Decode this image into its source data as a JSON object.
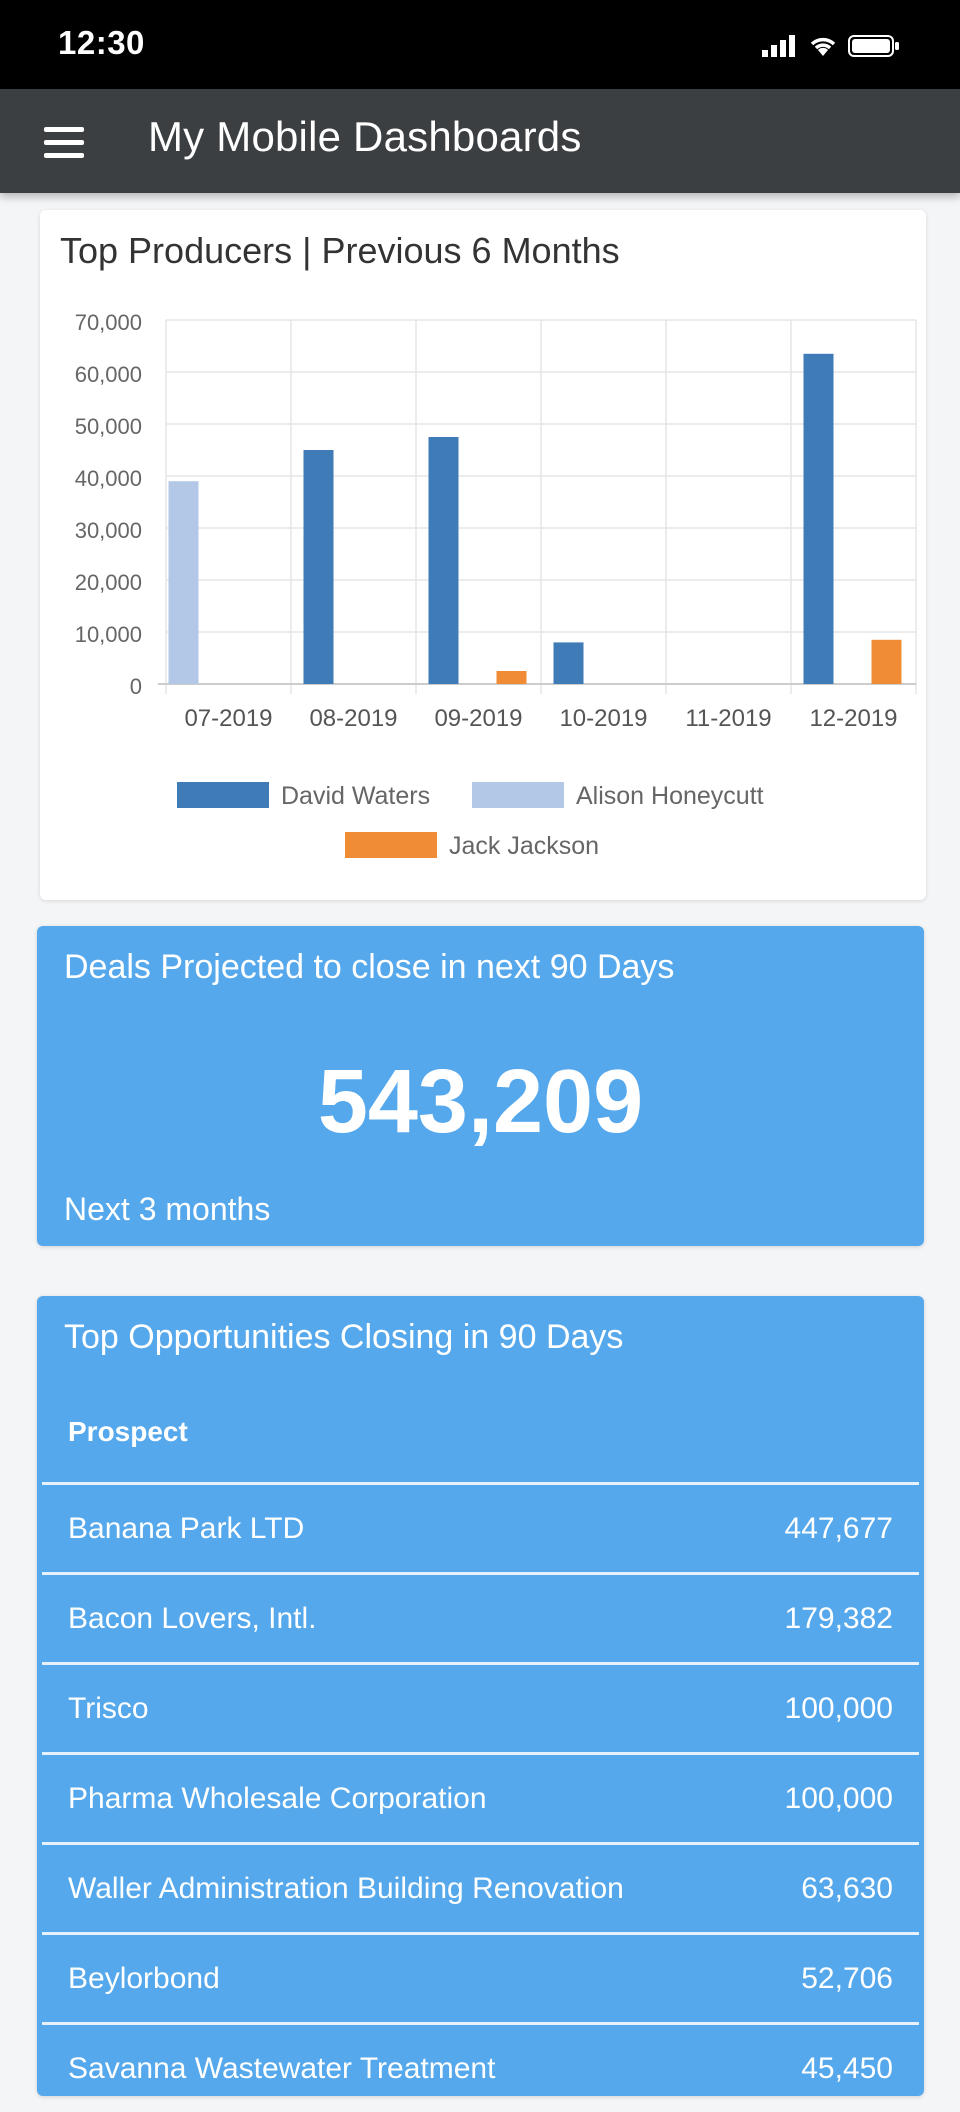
{
  "status_bar": {
    "time": "12:30"
  },
  "app_bar": {
    "title": "My Mobile Dashboards"
  },
  "chart_card": {
    "title": "Top Producers | Previous 6 Months"
  },
  "chart_data": {
    "type": "bar",
    "title": "Top Producers | Previous 6 Months",
    "categories": [
      "07-2019",
      "08-2019",
      "09-2019",
      "10-2019",
      "11-2019",
      "12-2019"
    ],
    "series": [
      {
        "name": "David Waters",
        "color": "#3f7bb6",
        "values": [
          0,
          45000,
          47500,
          8000,
          0,
          63500
        ]
      },
      {
        "name": "Alison Honeycutt",
        "color": "#b3c8e6",
        "values": [
          39000,
          0,
          0,
          0,
          0,
          0
        ]
      },
      {
        "name": "Jack Jackson",
        "color": "#ef8c35",
        "values": [
          0,
          0,
          2500,
          0,
          0,
          8500
        ]
      }
    ],
    "ylim": [
      0,
      70000
    ],
    "yticks": [
      0,
      10000,
      20000,
      30000,
      40000,
      50000,
      60000,
      70000
    ],
    "ytick_labels": [
      "0",
      "10,000",
      "20,000",
      "30,000",
      "40,000",
      "50,000",
      "60,000",
      "70,000"
    ],
    "grid": true,
    "legend": "bottom"
  },
  "kpi_card": {
    "title": "Deals Projected to close in next 90 Days",
    "value": "543,209",
    "footer": "Next 3 months"
  },
  "opportunities": {
    "title": "Top Opportunities Closing in 90 Days",
    "column_header": "Prospect",
    "rows": [
      {
        "name": "Banana Park LTD",
        "value": "447,677"
      },
      {
        "name": "Bacon Lovers, Intl.",
        "value": "179,382"
      },
      {
        "name": "Trisco",
        "value": "100,000"
      },
      {
        "name": "Pharma Wholesale Corporation",
        "value": "100,000"
      },
      {
        "name": "Waller Administration Building Renovation",
        "value": "63,630"
      },
      {
        "name": "Beylorbond",
        "value": "52,706"
      },
      {
        "name": "Savanna Wastewater Treatment",
        "value": "45,450"
      }
    ]
  },
  "colors": {
    "app_bar": "#3c3f42",
    "card_blue": "#55a8ec"
  }
}
